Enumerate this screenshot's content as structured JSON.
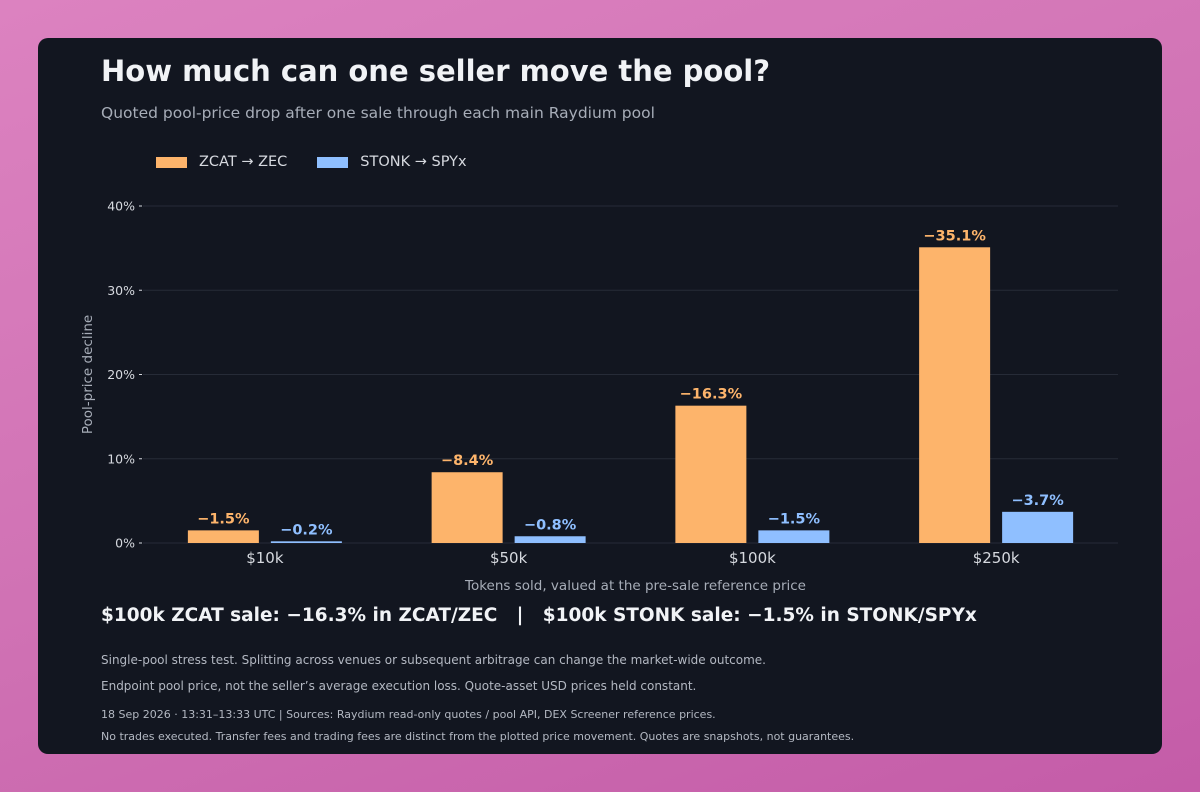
{
  "title": "How much can one seller move the pool?",
  "subtitle": "Quoted pool-price drop after one sale through each main Raydium pool",
  "headline": "$100k ZCAT sale: −16.3% in ZCAT/ZEC   |   $100k STONK sale: −1.5% in STONK/SPYx",
  "notes": [
    "Single-pool stress test. Splitting across venues or subsequent arbitrage can change the market-wide outcome.",
    "Endpoint pool price, not the seller’s average execution loss. Quote-asset USD prices held constant."
  ],
  "footer": {
    "sources": "18 Sep 2026 · 13:31–13:33 UTC  |  Sources: Raydium read-only quotes / pool API, DEX Screener reference prices.",
    "disclaimer": "No trades executed. Transfer fees and trading fees are distinct from the plotted price movement. Quotes are snapshots, not guarantees."
  },
  "colors": {
    "zcat": "#fdb46b",
    "stonk": "#8fbfff",
    "grid": "#262b37",
    "tick_text": "#d6d9df",
    "axis_label": "#a7adb8"
  },
  "chart_data": {
    "type": "bar",
    "categories": [
      "$10k",
      "$50k",
      "$100k",
      "$250k"
    ],
    "series": [
      {
        "name": "ZCAT → ZEC",
        "color": "#fdb46b",
        "values": [
          1.5,
          8.4,
          16.3,
          35.1
        ],
        "labels": [
          "−1.5%",
          "−8.4%",
          "−16.3%",
          "−35.1%"
        ]
      },
      {
        "name": "STONK → SPYx",
        "color": "#8fbfff",
        "values": [
          0.2,
          0.8,
          1.5,
          3.7
        ],
        "labels": [
          "−0.2%",
          "−0.8%",
          "−1.5%",
          "−3.7%"
        ]
      }
    ],
    "xlabel": "Tokens sold, valued at the pre-sale reference price",
    "ylabel": "Pool-price decline",
    "ylim": [
      0,
      40
    ],
    "yticks": [
      0,
      10,
      20,
      30,
      40
    ],
    "ytick_labels": [
      "0%",
      "10%",
      "20%",
      "30%",
      "40%"
    ],
    "grid": true,
    "legend_position": "top-left"
  }
}
